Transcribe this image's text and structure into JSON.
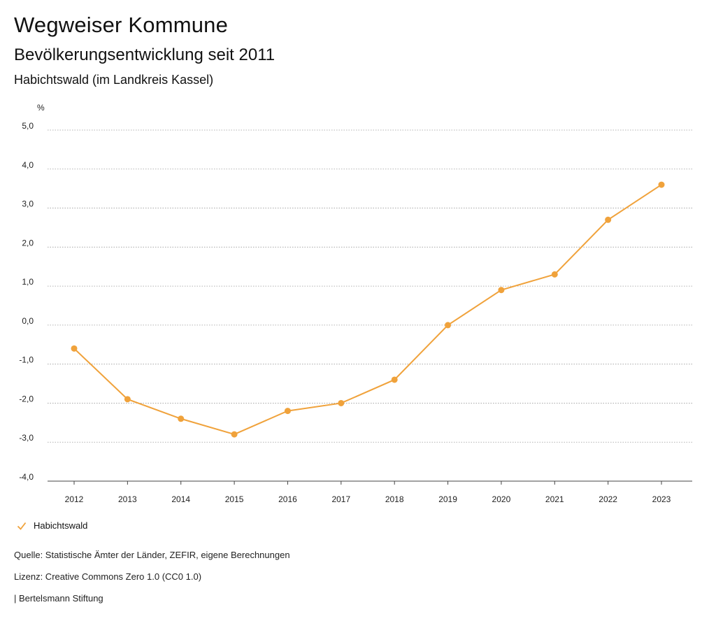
{
  "header": {
    "title": "Wegweiser Kommune",
    "subtitle": "Bevölkerungsentwicklung seit 2011",
    "region": "Habichtswald (im Landkreis Kassel)"
  },
  "chart_data": {
    "type": "line",
    "ylabel": "%",
    "ylim": [
      -4.0,
      5.0
    ],
    "yticks": [
      "5,0",
      "4,0",
      "3,0",
      "2,0",
      "1,0",
      "0,0",
      "-1,0",
      "-2,0",
      "-3,0",
      "-4,0"
    ],
    "ytick_values": [
      5,
      4,
      3,
      2,
      1,
      0,
      -1,
      -2,
      -3,
      -4
    ],
    "categories": [
      "2012",
      "2013",
      "2014",
      "2015",
      "2016",
      "2017",
      "2018",
      "2019",
      "2020",
      "2021",
      "2022",
      "2023"
    ],
    "series": [
      {
        "name": "Habichtswald",
        "color": "#f0a23b",
        "values": [
          -0.6,
          -1.9,
          -2.4,
          -2.8,
          -2.2,
          -2.0,
          -1.4,
          0.0,
          0.9,
          1.3,
          2.7,
          3.6
        ]
      }
    ],
    "grid": true,
    "legend_position": "bottom-left"
  },
  "footer": {
    "source": "Quelle: Statistische Ämter der Länder, ZEFIR, eigene Berechnungen",
    "license": "Lizenz: Creative Commons Zero 1.0 (CC0 1.0)",
    "publisher": "| Bertelsmann Stiftung"
  }
}
